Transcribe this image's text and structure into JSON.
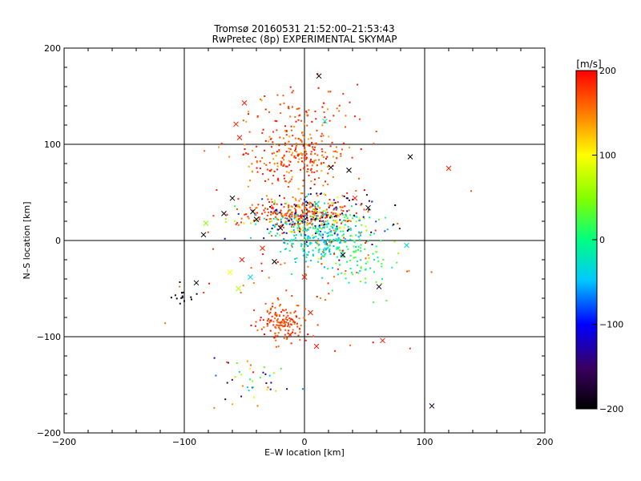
{
  "chart_data": {
    "type": "scatter",
    "title_line1": "Tromsø 20160531 21:52:00–21:53:43",
    "title_line2": "RwPretec (8p) EXPERIMENTAL SKYMAP",
    "xlabel": "E–W location [km]",
    "ylabel": "N–S location [km]",
    "xlim": [
      -200,
      200
    ],
    "ylim": [
      -200,
      200
    ],
    "grid_lines": [
      -100,
      0,
      100
    ],
    "xticks": [
      -200,
      -100,
      0,
      100,
      200
    ],
    "yticks": [
      -200,
      -100,
      0,
      100,
      200
    ],
    "xtick_labels": [
      "−200",
      "−100",
      "0",
      "100",
      "200"
    ],
    "ytick_labels": [
      "−200",
      "−100",
      "0",
      "100",
      "200"
    ],
    "colorbar": {
      "label": "[m/s]",
      "range": [
        -200,
        200
      ],
      "ticks": [
        200,
        100,
        0,
        -100,
        -200
      ],
      "tick_labels": [
        "200",
        "100",
        "0",
        "−100",
        "−200"
      ]
    },
    "clusters": [
      {
        "name": "north-cluster",
        "cx": -10,
        "cy": 90,
        "sx": 20,
        "sy": 16,
        "n": 260,
        "vmin": 130,
        "vmax": 200
      },
      {
        "name": "north-upper-spread",
        "cx": 0,
        "cy": 130,
        "sx": 22,
        "sy": 14,
        "n": 60,
        "vmin": 150,
        "vmax": 200
      },
      {
        "name": "center-red",
        "cx": -5,
        "cy": 28,
        "sx": 22,
        "sy": 8,
        "n": 260,
        "vmin": 140,
        "vmax": 200
      },
      {
        "name": "center-mixed",
        "cx": 5,
        "cy": 20,
        "sx": 25,
        "sy": 12,
        "n": 230,
        "vmin": -150,
        "vmax": 120
      },
      {
        "name": "center-cyan",
        "cx": 15,
        "cy": 0,
        "sx": 18,
        "sy": 14,
        "n": 220,
        "vmin": -60,
        "vmax": 10
      },
      {
        "name": "center-dark",
        "cx": 20,
        "cy": 25,
        "sx": 25,
        "sy": 15,
        "n": 60,
        "vmin": -200,
        "vmax": -120
      },
      {
        "name": "east-green",
        "cx": 45,
        "cy": -25,
        "sx": 15,
        "sy": 15,
        "n": 60,
        "vmin": -20,
        "vmax": 60
      },
      {
        "name": "south-cluster",
        "cx": -20,
        "cy": -85,
        "sx": 10,
        "sy": 9,
        "n": 150,
        "vmin": 150,
        "vmax": 200
      },
      {
        "name": "south-tail",
        "cx": -45,
        "cy": -145,
        "sx": 15,
        "sy": 12,
        "n": 40,
        "vmin": -200,
        "vmax": 200
      },
      {
        "name": "west-dark",
        "cx": -100,
        "cy": -57,
        "sx": 6,
        "sy": 4,
        "n": 15,
        "vmin": -200,
        "vmax": -170
      },
      {
        "name": "scattered-red",
        "cx": 0,
        "cy": 10,
        "sx": 45,
        "sy": 70,
        "n": 110,
        "vmin": 140,
        "vmax": 200
      }
    ],
    "markers": [
      {
        "x": 12,
        "y": 171,
        "v": -200
      },
      {
        "x": -50,
        "y": 143,
        "v": 190
      },
      {
        "x": -57,
        "y": 121,
        "v": 190
      },
      {
        "x": -54,
        "y": 107,
        "v": 190
      },
      {
        "x": 17,
        "y": 124,
        "v": -20
      },
      {
        "x": 88,
        "y": 87,
        "v": -200
      },
      {
        "x": 120,
        "y": 75,
        "v": 190
      },
      {
        "x": 37,
        "y": 73,
        "v": -200
      },
      {
        "x": 22,
        "y": 76,
        "v": -200
      },
      {
        "x": -67,
        "y": 28,
        "v": -200
      },
      {
        "x": -60,
        "y": 44,
        "v": -200
      },
      {
        "x": -82,
        "y": 18,
        "v": 50
      },
      {
        "x": -84,
        "y": 6,
        "v": -200
      },
      {
        "x": -40,
        "y": 22,
        "v": -200
      },
      {
        "x": -43,
        "y": 30,
        "v": -190
      },
      {
        "x": 53,
        "y": 34,
        "v": -200
      },
      {
        "x": 42,
        "y": 44,
        "v": 190
      },
      {
        "x": 85,
        "y": -5,
        "v": -30
      },
      {
        "x": 62,
        "y": -48,
        "v": -170
      },
      {
        "x": -55,
        "y": -50,
        "v": 70
      },
      {
        "x": -45,
        "y": -38,
        "v": -40
      },
      {
        "x": -62,
        "y": -33,
        "v": 100
      },
      {
        "x": -90,
        "y": -44,
        "v": -200
      },
      {
        "x": -25,
        "y": -22,
        "v": -200
      },
      {
        "x": -52,
        "y": -20,
        "v": 190
      },
      {
        "x": -35,
        "y": -8,
        "v": 190
      },
      {
        "x": 32,
        "y": -15,
        "v": -190
      },
      {
        "x": 65,
        "y": -104,
        "v": 190
      },
      {
        "x": 106,
        "y": -172,
        "v": -170
      },
      {
        "x": -12,
        "y": -98,
        "v": 190
      },
      {
        "x": 10,
        "y": -110,
        "v": 190
      },
      {
        "x": 5,
        "y": -75,
        "v": 190
      },
      {
        "x": -20,
        "y": 13,
        "v": -200
      },
      {
        "x": 0,
        "y": -38,
        "v": 190
      },
      {
        "x": -3,
        "y": 24,
        "v": 190
      },
      {
        "x": 10,
        "y": 38,
        "v": -20
      }
    ]
  }
}
